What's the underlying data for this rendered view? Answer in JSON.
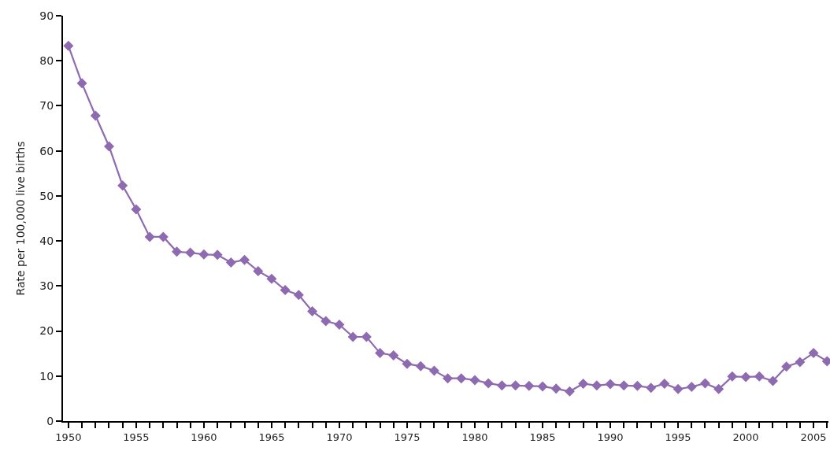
{
  "chart_data": {
    "type": "line",
    "ylabel": "Rate per 100,000 live births",
    "x": [
      1950,
      1951,
      1952,
      1953,
      1954,
      1955,
      1956,
      1957,
      1958,
      1959,
      1960,
      1961,
      1962,
      1963,
      1964,
      1965,
      1966,
      1967,
      1968,
      1969,
      1970,
      1971,
      1972,
      1973,
      1974,
      1975,
      1976,
      1977,
      1978,
      1979,
      1980,
      1981,
      1982,
      1983,
      1984,
      1985,
      1986,
      1987,
      1988,
      1989,
      1990,
      1991,
      1992,
      1993,
      1994,
      1995,
      1996,
      1997,
      1998,
      1999,
      2000,
      2001,
      2002,
      2003,
      2004,
      2005,
      2006
    ],
    "series": [
      {
        "color": "#8e6bb0",
        "values": [
          83.3,
          75,
          67.8,
          61,
          52.3,
          47,
          40.9,
          40.9,
          37.6,
          37.4,
          37,
          36.9,
          35.2,
          35.8,
          33.3,
          31.6,
          29.1,
          28,
          24.4,
          22.2,
          21.4,
          18.7,
          18.7,
          15.1,
          14.6,
          12.7,
          12.2,
          11.2,
          9.5,
          9.5,
          9.1,
          8.4,
          7.9,
          7.9,
          7.8,
          7.7,
          7.2,
          6.6,
          8.3,
          7.9,
          8.2,
          7.9,
          7.8,
          7.4,
          8.3,
          7.1,
          7.6,
          8.4,
          7.1,
          9.9,
          9.8,
          9.9,
          8.9,
          12.1,
          13.1,
          15.1,
          13.3
        ]
      }
    ],
    "xlim": [
      1949.6,
      2006.1
    ],
    "xticks": [
      1950,
      {
        "value": 1951,
        "label": null
      },
      {
        "value": 1952,
        "label": null
      },
      {
        "value": 1953,
        "label": null
      },
      {
        "value": 1954,
        "label": null
      },
      1955,
      {
        "value": 1956,
        "label": null
      },
      {
        "value": 1957,
        "label": null
      },
      {
        "value": 1958,
        "label": null
      },
      {
        "value": 1959,
        "label": null
      },
      1960,
      {
        "value": 1961,
        "label": null
      },
      {
        "value": 1962,
        "label": null
      },
      {
        "value": 1963,
        "label": null
      },
      {
        "value": 1964,
        "label": null
      },
      1965,
      {
        "value": 1966,
        "label": null
      },
      {
        "value": 1967,
        "label": null
      },
      {
        "value": 1968,
        "label": null
      },
      {
        "value": 1969,
        "label": null
      },
      1970,
      {
        "value": 1971,
        "label": null
      },
      {
        "value": 1972,
        "label": null
      },
      {
        "value": 1973,
        "label": null
      },
      {
        "value": 1974,
        "label": null
      },
      1975,
      {
        "value": 1976,
        "label": null
      },
      {
        "value": 1977,
        "label": null
      },
      {
        "value": 1978,
        "label": null
      },
      {
        "value": 1979,
        "label": null
      },
      1980,
      {
        "value": 1981,
        "label": null
      },
      {
        "value": 1982,
        "label": null
      },
      {
        "value": 1983,
        "label": null
      },
      {
        "value": 1984,
        "label": null
      },
      1985,
      {
        "value": 1986,
        "label": null
      },
      {
        "value": 1987,
        "label": null
      },
      {
        "value": 1988,
        "label": null
      },
      {
        "value": 1989,
        "label": null
      },
      1990,
      {
        "value": 1991,
        "label": null
      },
      {
        "value": 1992,
        "label": null
      },
      {
        "value": 1993,
        "label": null
      },
      {
        "value": 1994,
        "label": null
      },
      1995,
      {
        "value": 1996,
        "label": null
      },
      {
        "value": 1997,
        "label": null
      },
      {
        "value": 1998,
        "label": null
      },
      {
        "value": 1999,
        "label": null
      },
      2000,
      {
        "value": 2001,
        "label": null
      },
      {
        "value": 2002,
        "label": null
      },
      {
        "value": 2003,
        "label": null
      },
      {
        "value": 2004,
        "label": null
      },
      2005,
      {
        "value": 2006,
        "label": null
      }
    ],
    "ylim": [
      0,
      90
    ],
    "yticks": [
      0,
      10,
      20,
      30,
      40,
      50,
      60,
      70,
      80,
      90
    ],
    "legend": false,
    "marker": "diamond",
    "line_style": "solid"
  }
}
